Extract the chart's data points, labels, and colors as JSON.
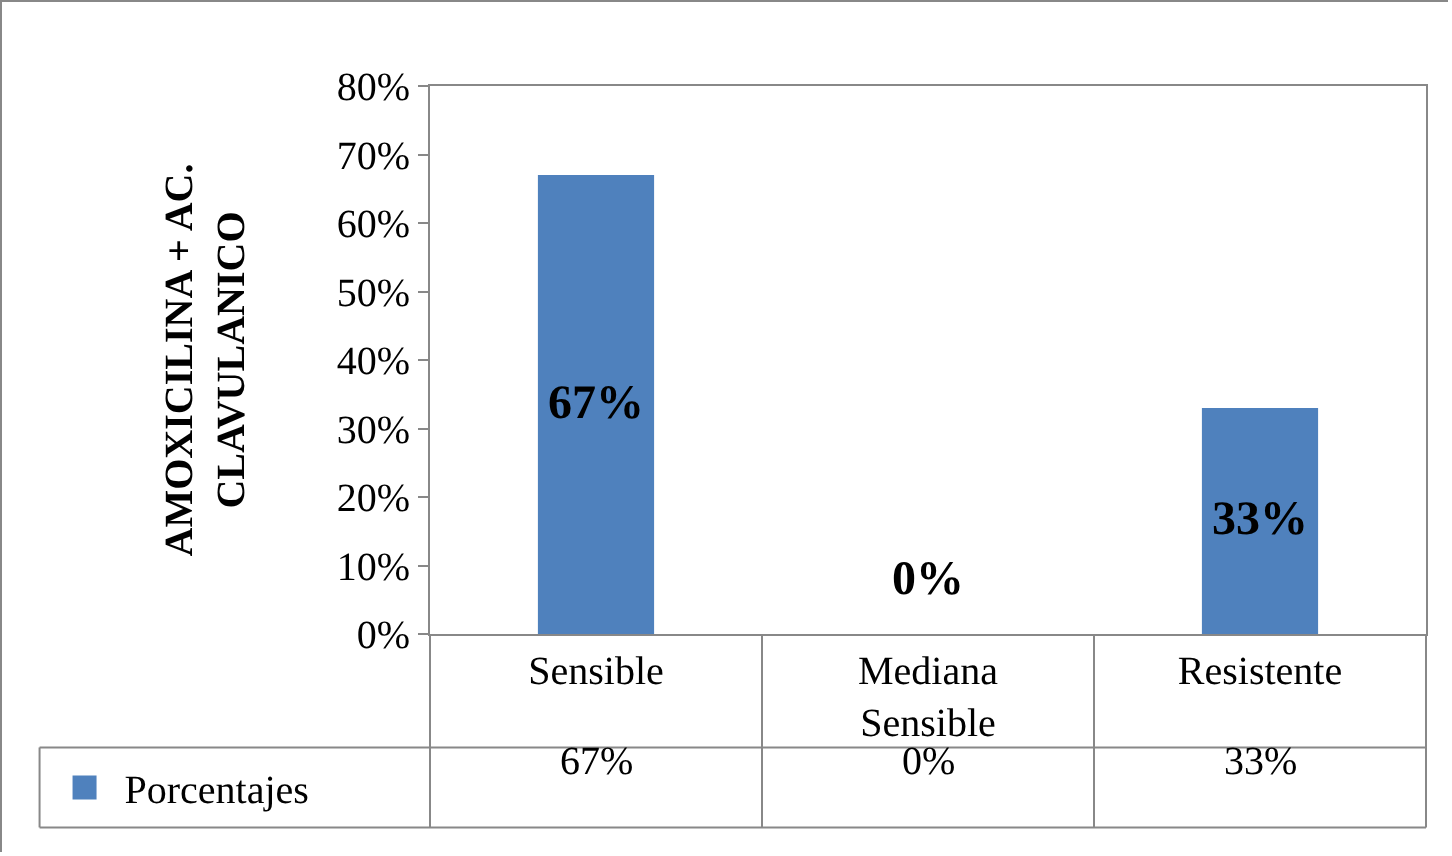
{
  "chart_data": {
    "type": "bar",
    "ylabel": "AMOXICILINA + AC. CLAVULANICO",
    "categories": [
      "Sensible",
      "Mediana Sensible",
      "Resistente"
    ],
    "series": [
      {
        "name": "Porcentajes",
        "color": "#4f81bd",
        "values": [
          67,
          0,
          33
        ]
      }
    ],
    "value_labels": [
      "67%",
      "0%",
      "33%"
    ],
    "ylim": [
      0,
      80
    ],
    "yticks": [
      {
        "value": 0,
        "label": "0%"
      },
      {
        "value": 10,
        "label": "10%"
      },
      {
        "value": 20,
        "label": "20%"
      },
      {
        "value": 30,
        "label": "30%"
      },
      {
        "value": 40,
        "label": "40%"
      },
      {
        "value": 50,
        "label": "50%"
      },
      {
        "value": 60,
        "label": "60%"
      },
      {
        "value": 70,
        "label": "70%"
      },
      {
        "value": 80,
        "label": "80%"
      }
    ],
    "grid": false,
    "legend": "bottom left"
  }
}
